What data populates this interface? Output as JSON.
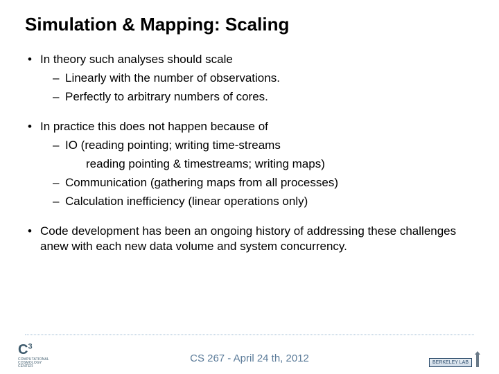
{
  "title": "Simulation & Mapping: Scaling",
  "bullets": {
    "b1a": "In theory such analyses should scale",
    "b1a_s1": "Linearly with the number of observations.",
    "b1a_s2": "Perfectly to arbitrary numbers of cores.",
    "b2a": "In practice this does not happen because of",
    "b2a_s1": "IO (reading pointing; writing time-streams",
    "b2a_s1c": "reading pointing & timestreams; writing maps)",
    "b2a_s2": "Communication (gathering maps from all processes)",
    "b2a_s3": "Calculation inefficiency (linear operations only)",
    "b3a": "Code development has been an ongoing history of addressing these challenges anew with each new data volume and system concurrency."
  },
  "footer": "CS 267 - April 24 th, 2012",
  "logo_left": {
    "main": "C",
    "sup": "3",
    "line1": "COMPUTATIONAL",
    "line2": "COSMOLOGY",
    "line3": "CENTER"
  },
  "logo_right": "BERKELEY LAB",
  "colors": {
    "footer_text": "#5b7b99",
    "dotted": "#9bb8d3",
    "logo": "#3d5a6c"
  }
}
